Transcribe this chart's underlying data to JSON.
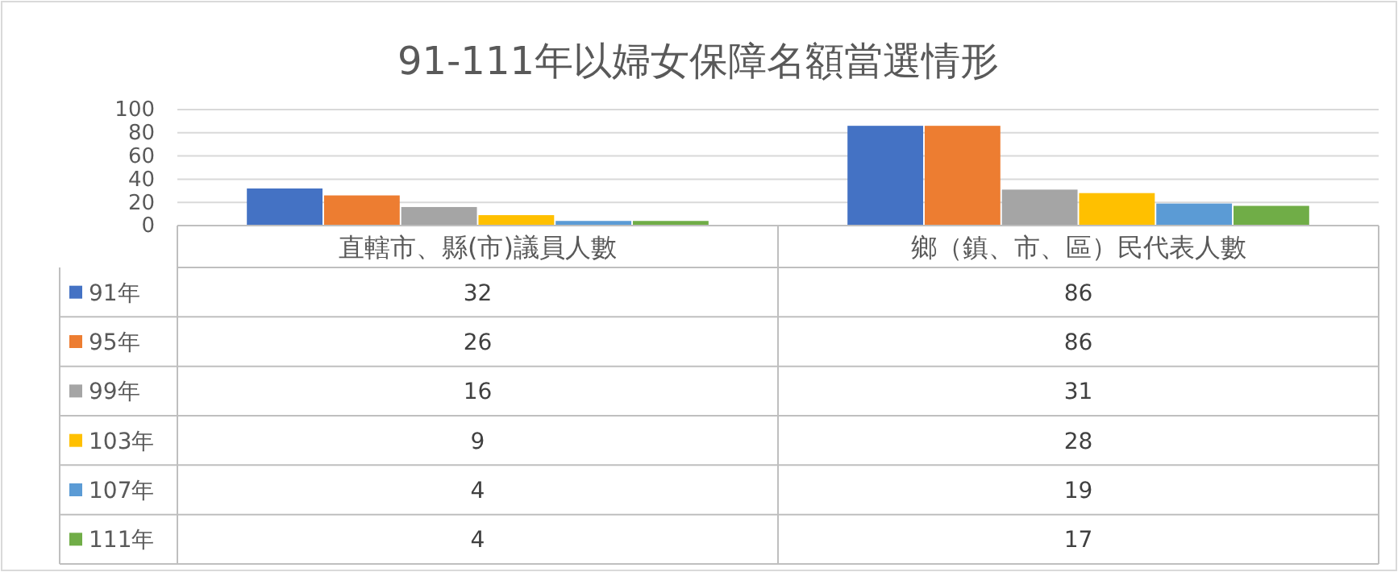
{
  "chart_data": {
    "type": "bar",
    "title": "91-111年以婦女保障名額當選情形",
    "categories": [
      "直轄市、縣(市)議員人數",
      "鄉（鎮、市、區）民代表人數"
    ],
    "series": [
      {
        "name": "91年",
        "color": "#4472c4",
        "values": [
          32,
          86
        ]
      },
      {
        "name": "95年",
        "color": "#ed7d31",
        "values": [
          26,
          86
        ]
      },
      {
        "name": "99年",
        "color": "#a5a5a5",
        "values": [
          16,
          31
        ]
      },
      {
        "name": "103年",
        "color": "#ffc000",
        "values": [
          9,
          28
        ]
      },
      {
        "name": "107年",
        "color": "#5b9bd5",
        "values": [
          4,
          19
        ]
      },
      {
        "name": "111年",
        "color": "#70ad47",
        "values": [
          4,
          17
        ]
      }
    ],
    "ylim": [
      0,
      100
    ],
    "yticks": [
      0,
      20,
      40,
      60,
      80,
      100
    ],
    "grid": "y",
    "data_labels": true,
    "legend": "bottom"
  }
}
